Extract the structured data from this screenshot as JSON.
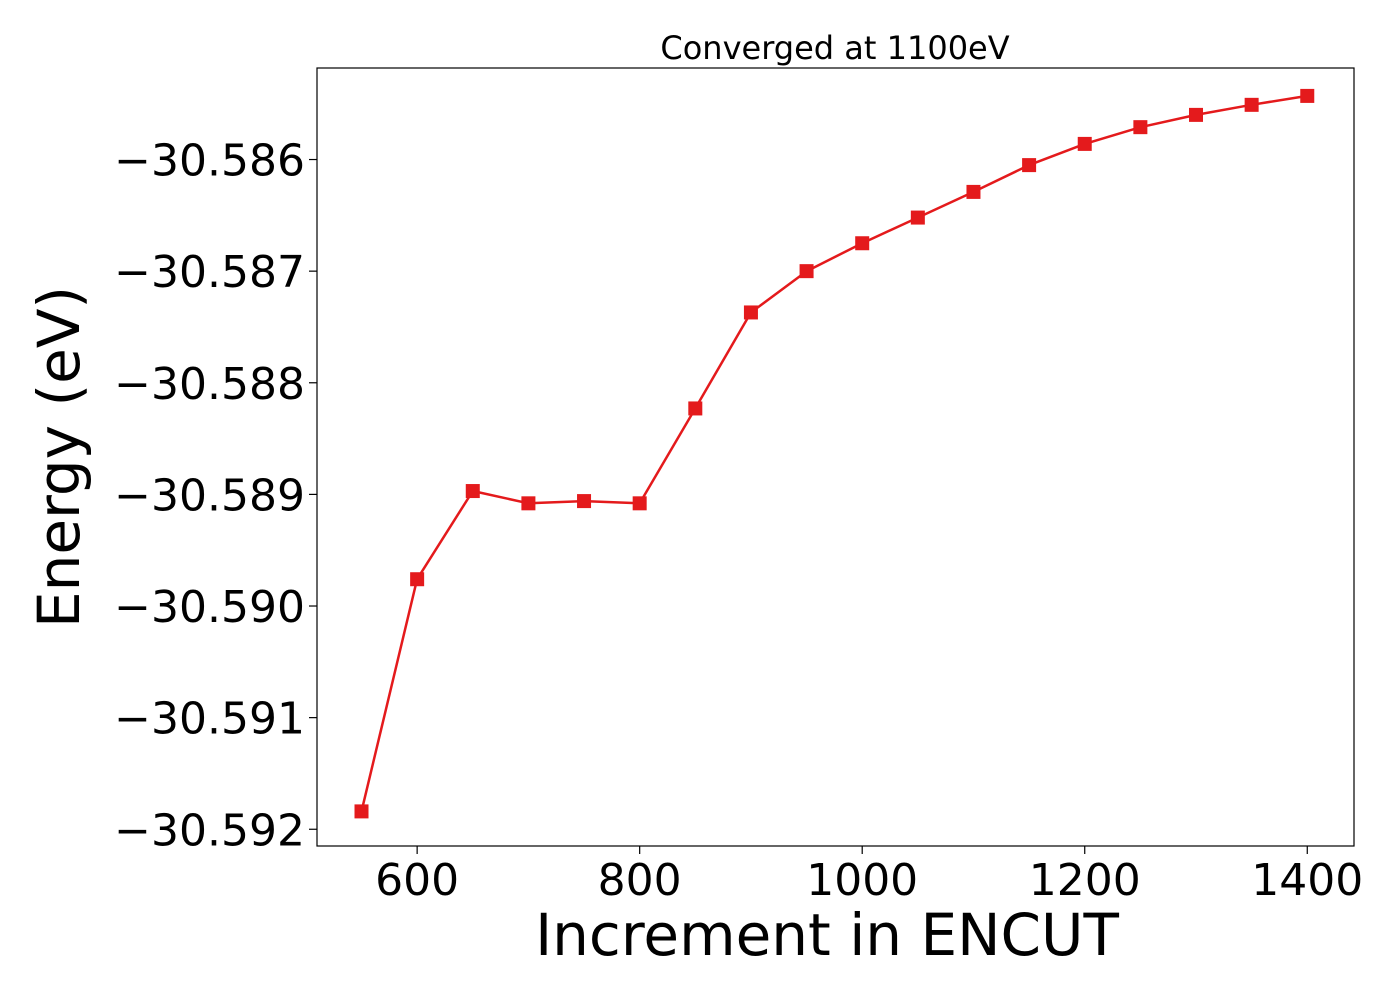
{
  "chart_data": {
    "type": "line",
    "title": "Converged at 1100eV",
    "xlabel": "Increment in ENCUT",
    "ylabel": "Energy (eV)",
    "xlim": [
      510,
      1442
    ],
    "ylim": [
      -30.59215,
      -30.58518
    ],
    "xticks": [
      600,
      800,
      1000,
      1200,
      1400
    ],
    "xtick_labels": [
      "600",
      "800",
      "1000",
      "1200",
      "1400"
    ],
    "yticks": [
      -30.592,
      -30.591,
      -30.59,
      -30.589,
      -30.588,
      -30.587,
      -30.586
    ],
    "ytick_labels": [
      "−30.592",
      "−30.591",
      "−30.590",
      "−30.589",
      "−30.588",
      "−30.587",
      "−30.586"
    ],
    "grid": false,
    "series": [
      {
        "color": "#e41a1c",
        "marker": "square",
        "x": [
          550,
          600,
          650,
          700,
          750,
          800,
          850,
          900,
          950,
          1000,
          1050,
          1100,
          1150,
          1200,
          1250,
          1300,
          1350,
          1400
        ],
        "y": [
          -30.59184,
          -30.58976,
          -30.58897,
          -30.58908,
          -30.58906,
          -30.58908,
          -30.58823,
          -30.58737,
          -30.587,
          -30.58675,
          -30.58652,
          -30.58629,
          -30.58605,
          -30.58586,
          -30.58571,
          -30.5856,
          -30.58551,
          -30.58543
        ]
      }
    ]
  }
}
